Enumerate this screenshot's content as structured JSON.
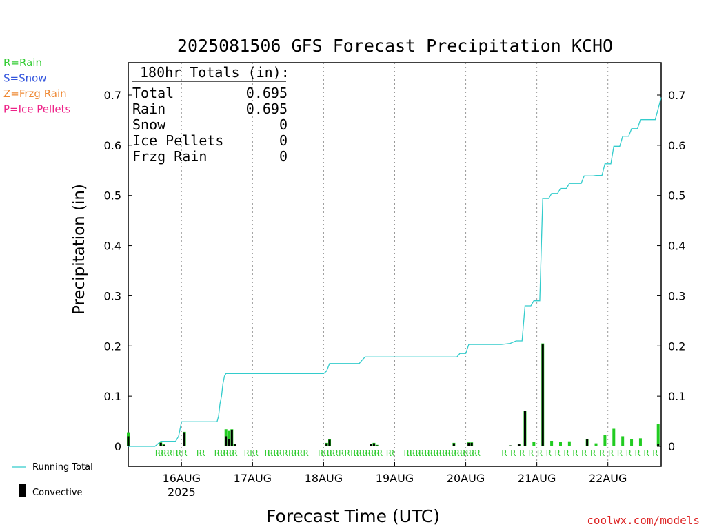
{
  "chart_data": {
    "type": "bar",
    "title": "2025081506 GFS Forecast Precipitation KCHO",
    "xlabel": "Forecast Time (UTC)",
    "ylabel": "Precipitation (in)",
    "ylim": [
      0,
      0.77
    ],
    "yticks": [
      "0",
      "0.1",
      "0.2",
      "0.3",
      "0.4",
      "0.5",
      "0.6",
      "0.7"
    ],
    "xlim_hours": [
      0,
      180
    ],
    "x_date_labels": [
      {
        "hour": 18,
        "label": "16AUG",
        "sublabel": "2025"
      },
      {
        "hour": 42,
        "label": "17AUG"
      },
      {
        "hour": 66,
        "label": "18AUG"
      },
      {
        "hour": 90,
        "label": "19AUG"
      },
      {
        "hour": 114,
        "label": "20AUG"
      },
      {
        "hour": 138,
        "label": "21AUG"
      },
      {
        "hour": 162,
        "label": "22AUG"
      }
    ],
    "legend_types": [
      {
        "text": "R=Rain",
        "color": "#33cc33"
      },
      {
        "text": "S=Snow",
        "color": "#3355dd"
      },
      {
        "text": "Z=Frzg Rain",
        "color": "#ee8833"
      },
      {
        "text": "P=Ice Pellets",
        "color": "#ee2288"
      }
    ],
    "totals_box": {
      "header": "180hr Totals (in):",
      "rows": [
        {
          "name": "Total",
          "value": "0.695"
        },
        {
          "name": "Rain",
          "value": "0.695"
        },
        {
          "name": "Snow",
          "value": "0"
        },
        {
          "name": "Ice Pellets",
          "value": "0"
        },
        {
          "name": "Frzg Rain",
          "value": "0"
        }
      ]
    },
    "legend_bottom": {
      "running_total_label": "Running Total",
      "convective_label": "Convective"
    },
    "series": [
      {
        "name": "Running Total",
        "color": "#33cccc",
        "points": [
          [
            0,
            0
          ],
          [
            9,
            0
          ],
          [
            11,
            0.01
          ],
          [
            16,
            0.01
          ],
          [
            17,
            0.02
          ],
          [
            18,
            0.049
          ],
          [
            20,
            0.049
          ],
          [
            30,
            0.049
          ],
          [
            30.5,
            0.06
          ],
          [
            31,
            0.085
          ],
          [
            31.5,
            0.1
          ],
          [
            32,
            0.125
          ],
          [
            32.5,
            0.14
          ],
          [
            33,
            0.145
          ],
          [
            36,
            0.145
          ],
          [
            48,
            0.145
          ],
          [
            60,
            0.145
          ],
          [
            66,
            0.145
          ],
          [
            67,
            0.15
          ],
          [
            68,
            0.165
          ],
          [
            72,
            0.165
          ],
          [
            78,
            0.165
          ],
          [
            79,
            0.172
          ],
          [
            80,
            0.178
          ],
          [
            90,
            0.178
          ],
          [
            102,
            0.178
          ],
          [
            111,
            0.178
          ],
          [
            112,
            0.185
          ],
          [
            114,
            0.185
          ],
          [
            115,
            0.203
          ],
          [
            126,
            0.203
          ],
          [
            129,
            0.205
          ],
          [
            131,
            0.21
          ],
          [
            133,
            0.21
          ],
          [
            134,
            0.28
          ],
          [
            136,
            0.28
          ],
          [
            137,
            0.29
          ],
          [
            139,
            0.29
          ],
          [
            140,
            0.494
          ],
          [
            142,
            0.494
          ],
          [
            143,
            0.504
          ],
          [
            145,
            0.504
          ],
          [
            146,
            0.514
          ],
          [
            148,
            0.514
          ],
          [
            149,
            0.524
          ],
          [
            153,
            0.524
          ],
          [
            154,
            0.539
          ],
          [
            157,
            0.539
          ],
          [
            158,
            0.54
          ],
          [
            160,
            0.54
          ],
          [
            161,
            0.563
          ],
          [
            163,
            0.563
          ],
          [
            164,
            0.598
          ],
          [
            166,
            0.598
          ],
          [
            167,
            0.618
          ],
          [
            169,
            0.618
          ],
          [
            170,
            0.633
          ],
          [
            172,
            0.633
          ],
          [
            173,
            0.651
          ],
          [
            178,
            0.651
          ],
          [
            180,
            0.695
          ]
        ]
      }
    ],
    "bars_total": [
      [
        0,
        0.028
      ],
      [
        11,
        0.008
      ],
      [
        12,
        0.004
      ],
      [
        19,
        0.029
      ],
      [
        33,
        0.034
      ],
      [
        34,
        0.032
      ],
      [
        35,
        0.034
      ],
      [
        36,
        0.005
      ],
      [
        67,
        0.007
      ],
      [
        68,
        0.014
      ],
      [
        82,
        0.005
      ],
      [
        83,
        0.007
      ],
      [
        84,
        0.003
      ],
      [
        110,
        0.007
      ],
      [
        115,
        0.008
      ],
      [
        116,
        0.008
      ],
      [
        129,
        0.002
      ],
      [
        132,
        0.004
      ],
      [
        134,
        0.071
      ],
      [
        137,
        0.009
      ],
      [
        140,
        0.205
      ],
      [
        143,
        0.011
      ],
      [
        146,
        0.009
      ],
      [
        149,
        0.01
      ],
      [
        155,
        0.014
      ],
      [
        158,
        0.006
      ],
      [
        161,
        0.023
      ],
      [
        164,
        0.035
      ],
      [
        167,
        0.02
      ],
      [
        170,
        0.015
      ],
      [
        173,
        0.016
      ],
      [
        179,
        0.044
      ]
    ],
    "bars_convective": [
      [
        0,
        0.02
      ],
      [
        11,
        0.007
      ],
      [
        12,
        0.003
      ],
      [
        19,
        0.028
      ],
      [
        33,
        0.02
      ],
      [
        34,
        0.015
      ],
      [
        35,
        0.033
      ],
      [
        36,
        0.004
      ],
      [
        67,
        0.006
      ],
      [
        68,
        0.013
      ],
      [
        82,
        0.004
      ],
      [
        83,
        0.006
      ],
      [
        84,
        0.002
      ],
      [
        110,
        0.006
      ],
      [
        115,
        0.007
      ],
      [
        116,
        0.007
      ],
      [
        129,
        0.002
      ],
      [
        132,
        0.004
      ],
      [
        134,
        0.07
      ],
      [
        140,
        0.203
      ],
      [
        155,
        0.014
      ],
      [
        179,
        0.005
      ]
    ],
    "type_markers": {
      "symbol": "R",
      "hours": [
        10,
        11,
        12,
        13,
        14,
        16,
        17,
        19,
        24,
        25,
        30,
        31,
        32,
        33,
        34,
        35,
        36,
        40,
        42,
        43,
        47,
        48,
        49,
        50,
        51,
        53,
        55,
        56,
        57,
        58,
        60,
        65,
        66,
        67,
        68,
        69,
        70,
        72,
        74,
        76,
        77,
        78,
        79,
        80,
        81,
        82,
        83,
        84,
        85,
        88,
        89,
        94,
        95,
        96,
        97,
        98,
        99,
        100,
        101,
        102,
        103,
        104,
        105,
        106,
        107,
        108,
        109,
        110,
        111,
        112,
        113,
        114,
        115,
        116,
        117,
        118,
        127,
        130,
        133,
        136,
        139,
        142,
        145,
        148,
        151,
        154,
        157,
        160,
        163,
        166,
        169,
        172,
        175,
        178
      ]
    },
    "grid": "dotted vertical at 00Z",
    "watermark": "coolwx.com/models"
  }
}
